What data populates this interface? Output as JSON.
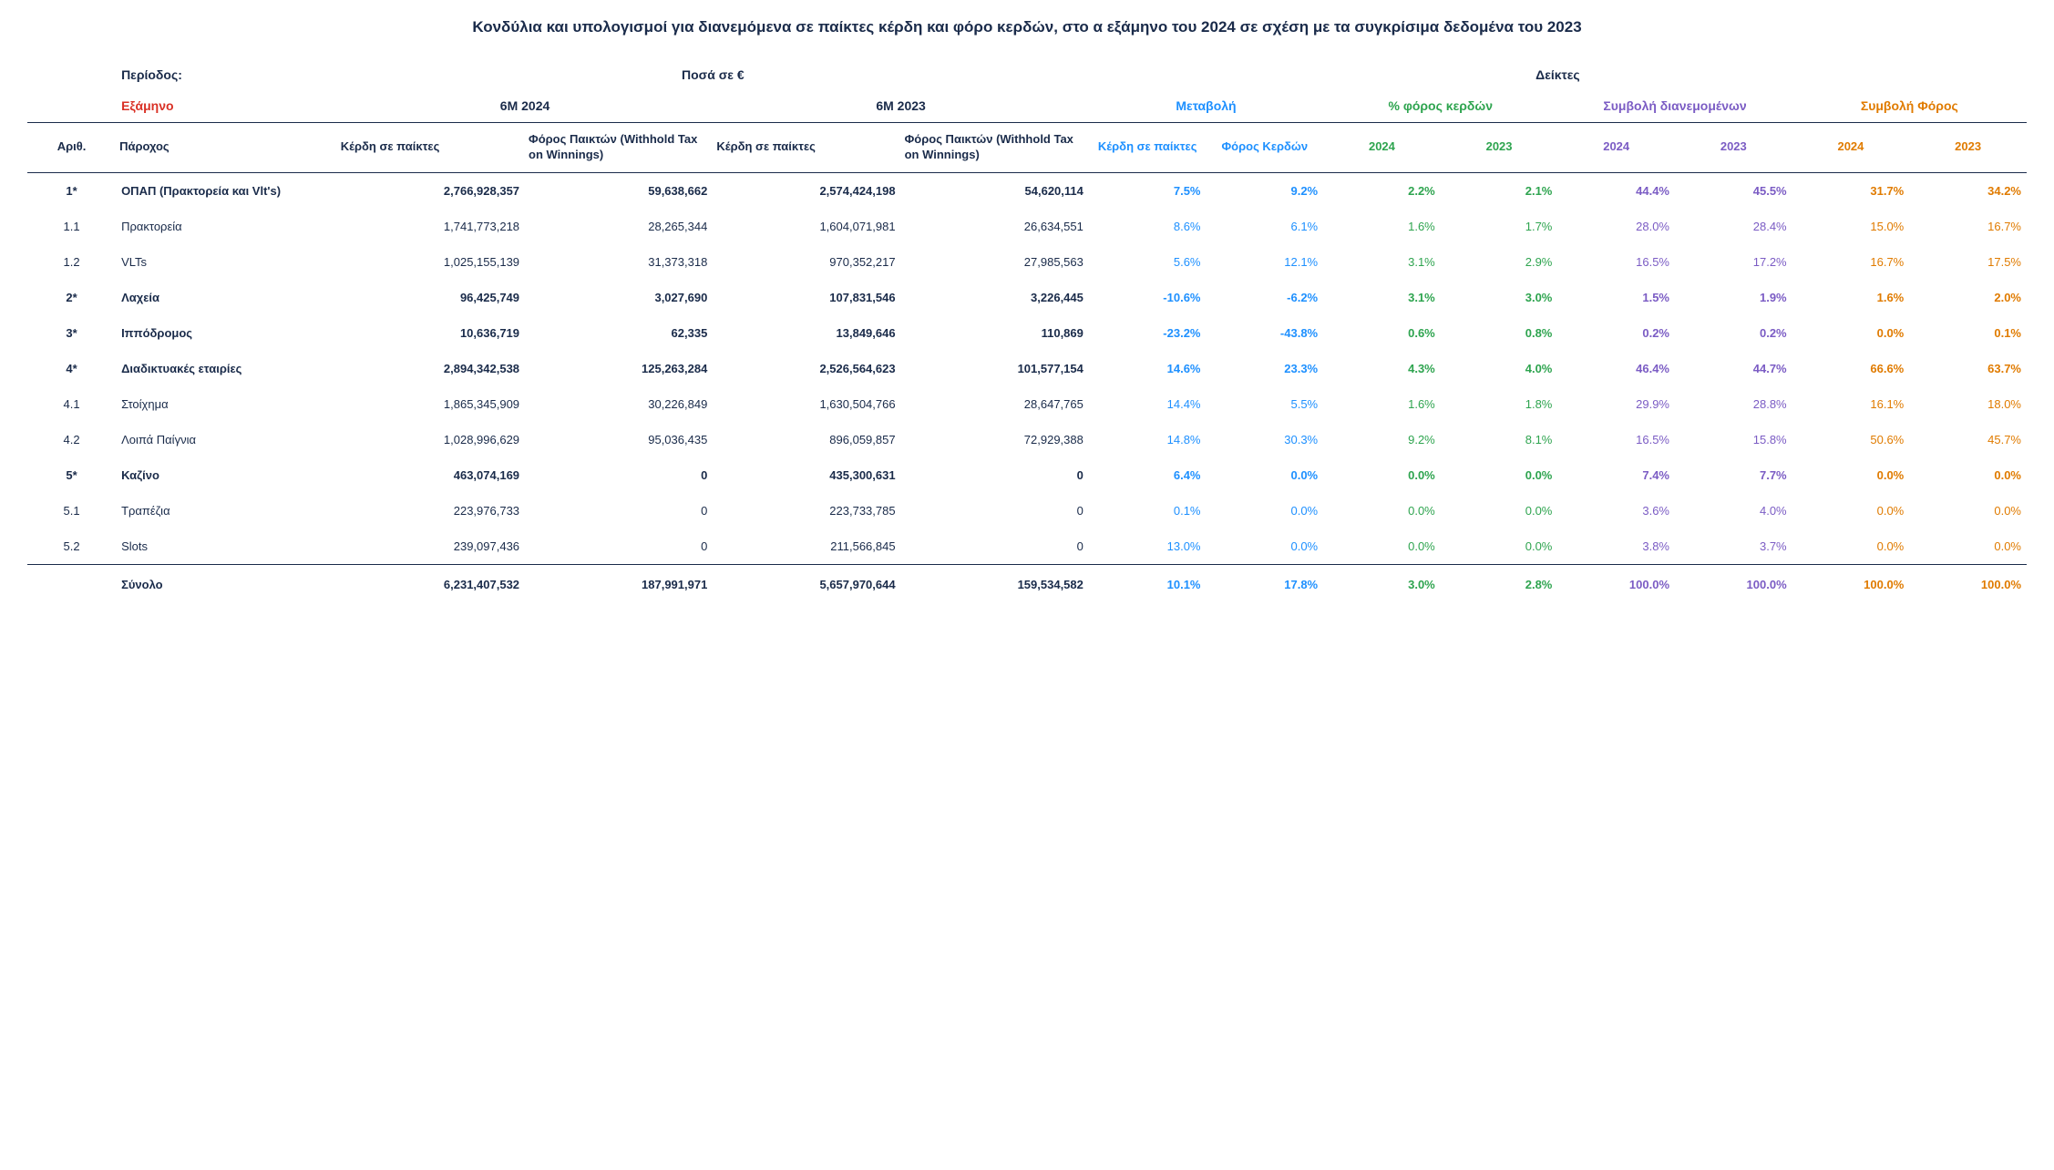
{
  "title": "Κονδύλια και υπολογισμοί για διανεμόμενα σε παίκτες κέρδη και φόρο κερδών, στο α εξάμηνο του 2024 σε σχέση με τα συγκρίσιμα δεδομένα του 2023",
  "colors": {
    "text": "#1a2b4a",
    "red": "#d93025",
    "blue": "#1e90ff",
    "green": "#2ea44f",
    "purple": "#7b5cc4",
    "orange": "#e07b00"
  },
  "headers": {
    "period_label": "Περίοδος:",
    "amounts_label": "Ποσά σε €",
    "indices_label": "Δείκτες",
    "semester": "Εξάμηνο",
    "p2024": "6M 2024",
    "p2023": "6M 2023",
    "change": "Μεταβολή",
    "tax_pct": "% φόρος κερδών",
    "contrib_dist": "Συμβολή διανεμομένων",
    "contrib_tax": "Συμβολή Φόρος",
    "num": "Αριθ.",
    "provider": "Πάροχος",
    "win_players": "Κέρδη σε παίκτες",
    "tax": "Φόρος Παικτών (Withhold Tax on Winnings)",
    "chg_win": "Κέρδη σε παίκτες",
    "chg_tax": "Φόρος Κερδών",
    "y2024": "2024",
    "y2023": "2023"
  },
  "rows": [
    {
      "bold": true,
      "num": "1*",
      "name": "ΟΠΑΠ (Πρακτορεία και Vlt's)",
      "w24": "2,766,928,357",
      "t24": "59,638,662",
      "w23": "2,574,424,198",
      "t23": "54,620,114",
      "cw": "7.5%",
      "ct": "9.2%",
      "p24": "2.2%",
      "p23": "2.1%",
      "d24": "44.4%",
      "d23": "45.5%",
      "f24": "31.7%",
      "f23": "34.2%"
    },
    {
      "bold": false,
      "num": "1.1",
      "name": "Πρακτορεία",
      "w24": "1,741,773,218",
      "t24": "28,265,344",
      "w23": "1,604,071,981",
      "t23": "26,634,551",
      "cw": "8.6%",
      "ct": "6.1%",
      "p24": "1.6%",
      "p23": "1.7%",
      "d24": "28.0%",
      "d23": "28.4%",
      "f24": "15.0%",
      "f23": "16.7%"
    },
    {
      "bold": false,
      "num": "1.2",
      "name": "VLTs",
      "w24": "1,025,155,139",
      "t24": "31,373,318",
      "w23": "970,352,217",
      "t23": "27,985,563",
      "cw": "5.6%",
      "ct": "12.1%",
      "p24": "3.1%",
      "p23": "2.9%",
      "d24": "16.5%",
      "d23": "17.2%",
      "f24": "16.7%",
      "f23": "17.5%"
    },
    {
      "bold": true,
      "num": "2*",
      "name": "Λαχεία",
      "w24": "96,425,749",
      "t24": "3,027,690",
      "w23": "107,831,546",
      "t23": "3,226,445",
      "cw": "-10.6%",
      "ct": "-6.2%",
      "p24": "3.1%",
      "p23": "3.0%",
      "d24": "1.5%",
      "d23": "1.9%",
      "f24": "1.6%",
      "f23": "2.0%"
    },
    {
      "bold": true,
      "num": "3*",
      "name": "Ιππόδρομος",
      "w24": "10,636,719",
      "t24": "62,335",
      "w23": "13,849,646",
      "t23": "110,869",
      "cw": "-23.2%",
      "ct": "-43.8%",
      "p24": "0.6%",
      "p23": "0.8%",
      "d24": "0.2%",
      "d23": "0.2%",
      "f24": "0.0%",
      "f23": "0.1%"
    },
    {
      "bold": true,
      "num": "4*",
      "name": "Διαδικτυακές εταιρίες",
      "w24": "2,894,342,538",
      "t24": "125,263,284",
      "w23": "2,526,564,623",
      "t23": "101,577,154",
      "cw": "14.6%",
      "ct": "23.3%",
      "p24": "4.3%",
      "p23": "4.0%",
      "d24": "46.4%",
      "d23": "44.7%",
      "f24": "66.6%",
      "f23": "63.7%"
    },
    {
      "bold": false,
      "num": "4.1",
      "name": "Στοίχημα",
      "w24": "1,865,345,909",
      "t24": "30,226,849",
      "w23": "1,630,504,766",
      "t23": "28,647,765",
      "cw": "14.4%",
      "ct": "5.5%",
      "p24": "1.6%",
      "p23": "1.8%",
      "d24": "29.9%",
      "d23": "28.8%",
      "f24": "16.1%",
      "f23": "18.0%"
    },
    {
      "bold": false,
      "num": "4.2",
      "name": "Λοιπά Παίγνια",
      "w24": "1,028,996,629",
      "t24": "95,036,435",
      "w23": "896,059,857",
      "t23": "72,929,388",
      "cw": "14.8%",
      "ct": "30.3%",
      "p24": "9.2%",
      "p23": "8.1%",
      "d24": "16.5%",
      "d23": "15.8%",
      "f24": "50.6%",
      "f23": "45.7%"
    },
    {
      "bold": true,
      "num": "5*",
      "name": "Καζίνο",
      "w24": "463,074,169",
      "t24": "0",
      "w23": "435,300,631",
      "t23": "0",
      "cw": "6.4%",
      "ct": "0.0%",
      "p24": "0.0%",
      "p23": "0.0%",
      "d24": "7.4%",
      "d23": "7.7%",
      "f24": "0.0%",
      "f23": "0.0%"
    },
    {
      "bold": false,
      "num": "5.1",
      "name": "Τραπέζια",
      "w24": "223,976,733",
      "t24": "0",
      "w23": "223,733,785",
      "t23": "0",
      "cw": "0.1%",
      "ct": "0.0%",
      "p24": "0.0%",
      "p23": "0.0%",
      "d24": "3.6%",
      "d23": "4.0%",
      "f24": "0.0%",
      "f23": "0.0%"
    },
    {
      "bold": false,
      "num": "5.2",
      "name": "Slots",
      "w24": "239,097,436",
      "t24": "0",
      "w23": "211,566,845",
      "t23": "0",
      "cw": "13.0%",
      "ct": "0.0%",
      "p24": "0.0%",
      "p23": "0.0%",
      "d24": "3.8%",
      "d23": "3.7%",
      "f24": "0.0%",
      "f23": "0.0%"
    }
  ],
  "total": {
    "label": "Σύνολο",
    "w24": "6,231,407,532",
    "t24": "187,991,971",
    "w23": "5,657,970,644",
    "t23": "159,534,582",
    "cw": "10.1%",
    "ct": "17.8%",
    "p24": "3.0%",
    "p23": "2.8%",
    "d24": "100.0%",
    "d23": "100.0%",
    "f24": "100.0%",
    "f23": "100.0%"
  }
}
